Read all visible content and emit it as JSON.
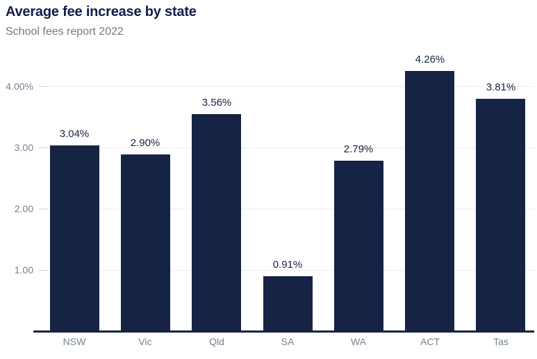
{
  "header": {
    "title": "Average fee increase by state",
    "subtitle": "School fees report 2022"
  },
  "colors": {
    "background": "#ffffff",
    "bar": "#162345",
    "title": "#131c4b",
    "subtitle": "#6e7a86",
    "axis_label": "#75818f",
    "data_label": "#162345",
    "gridline": "#ececec",
    "tick": "#c9cdd5",
    "axis_line": "#162345"
  },
  "chart_data": {
    "type": "bar",
    "title": "Average fee increase by state",
    "subtitle": "School fees report 2022",
    "categories": [
      "NSW",
      "Vic",
      "Qld",
      "SA",
      "WA",
      "ACT",
      "Tas"
    ],
    "values": [
      3.04,
      2.9,
      3.56,
      0.91,
      2.79,
      4.26,
      3.81
    ],
    "data_labels": [
      "3.04%",
      "2.90%",
      "3.56%",
      "0.91%",
      "2.79%",
      "4.26%",
      "3.81%"
    ],
    "xlabel": "",
    "ylabel": "",
    "y_ticks": [
      {
        "value": 1,
        "label": "1.00"
      },
      {
        "value": 2,
        "label": "2.00"
      },
      {
        "value": 3,
        "label": "3.00"
      },
      {
        "value": 4,
        "label": "4.00%"
      }
    ],
    "ylim": [
      0,
      4.55
    ],
    "grid": "horizontal",
    "legend": "none"
  }
}
